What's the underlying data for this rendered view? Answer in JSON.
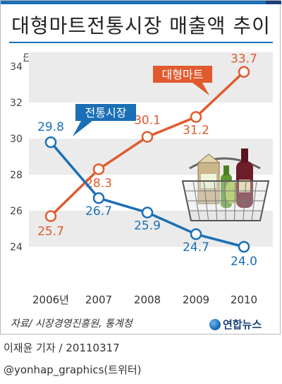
{
  "title": "대형마트전통시장 매출액 추이",
  "unit": "단위: 조원",
  "source": "자료/ 시장경영진흥원, 통계청",
  "logo_text": "연합뉴스",
  "credit_line1": "이재윤 기자 / 20110317",
  "credit_line2": "@yonhap_graphics(트위터)",
  "colors": {
    "mart": "#e05a2e",
    "traditional": "#1b6fb6",
    "band": "#ebebeb",
    "brand": "#1b6fb6"
  },
  "chart_data": {
    "type": "line",
    "categories": [
      "2006년",
      "2007",
      "2008",
      "2009",
      "2010"
    ],
    "ylim": [
      23,
      35
    ],
    "yticks": [
      24,
      26,
      28,
      30,
      32,
      34
    ],
    "grid": "alternating bands",
    "series": [
      {
        "name": "대형마트",
        "values": [
          25.7,
          28.3,
          30.1,
          31.2,
          33.7
        ],
        "labels": [
          "25.7",
          "28.3",
          "30.1",
          "31.2",
          "33.7"
        ]
      },
      {
        "name": "전통시장",
        "values": [
          29.8,
          26.7,
          25.9,
          24.7,
          24.0
        ],
        "labels": [
          "29.8",
          "26.7",
          "25.9",
          "24.7",
          "24.0"
        ]
      }
    ]
  }
}
